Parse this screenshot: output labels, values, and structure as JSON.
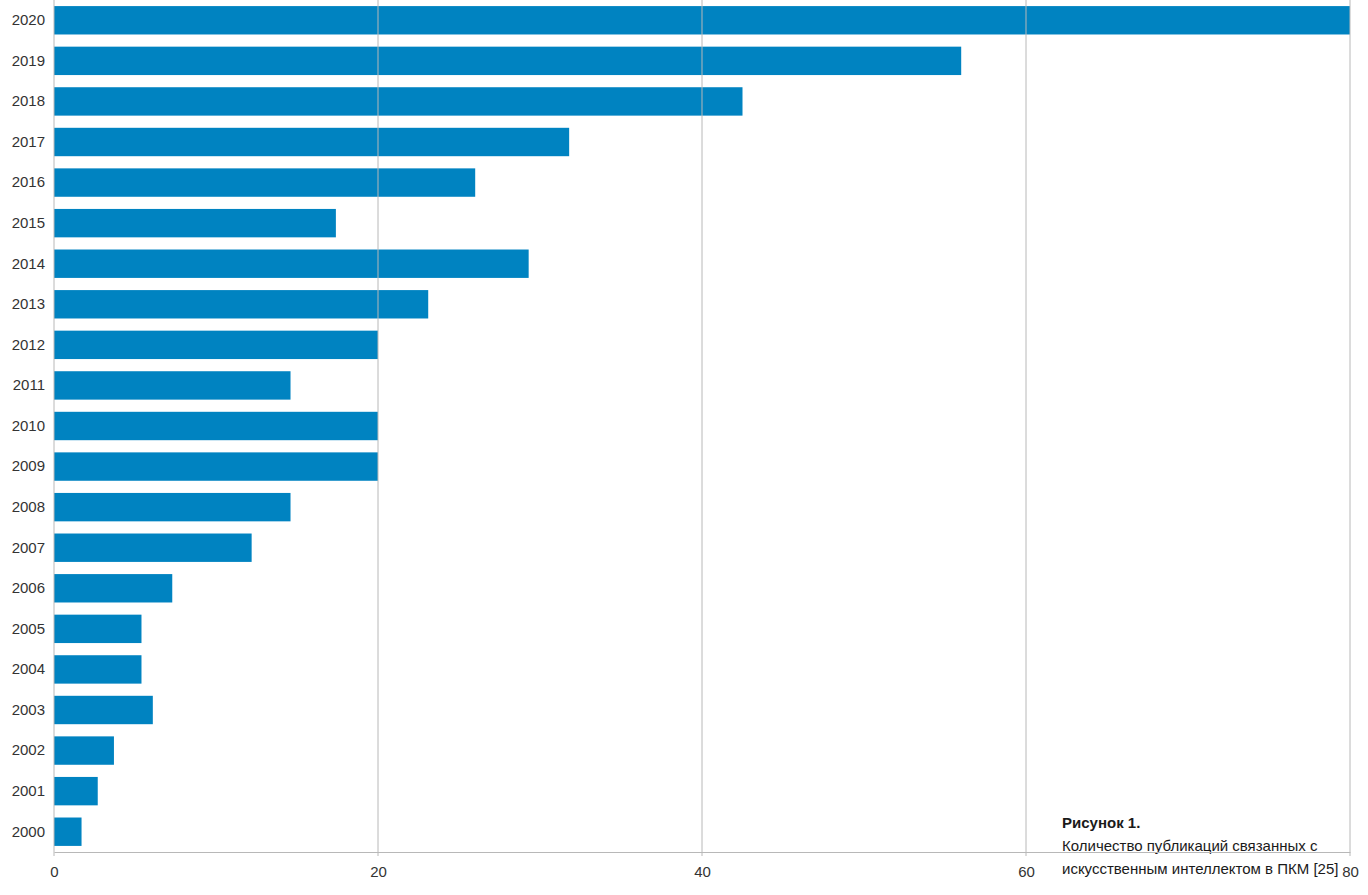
{
  "chart_data": {
    "type": "bar",
    "orientation": "horizontal",
    "title": "Рисунок 1.",
    "subtitle": "Количество публикаций связанных с искусственным интеллектом в ПКМ [25]",
    "categories": [
      "2020",
      "2019",
      "2018",
      "2017",
      "2016",
      "2015",
      "2014",
      "2013",
      "2012",
      "2011",
      "2010",
      "2009",
      "2008",
      "2007",
      "2006",
      "2005",
      "2004",
      "2003",
      "2002",
      "2001",
      "2000"
    ],
    "values": [
      80,
      56,
      42.5,
      31.8,
      26,
      17.4,
      29.3,
      23.1,
      20,
      14.6,
      20,
      20,
      14.6,
      12.2,
      7.3,
      5.4,
      5.4,
      6.1,
      3.7,
      2.7,
      1.7
    ],
    "color": "#0083c1",
    "xlim": [
      0,
      80
    ],
    "xticks": [
      0,
      20,
      40,
      60,
      80
    ],
    "grid": true
  }
}
